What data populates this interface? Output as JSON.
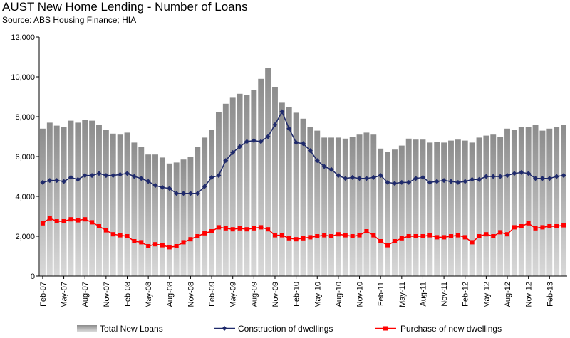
{
  "chart_data": {
    "type": "bar",
    "title": "AUST New Home Lending - Number of Loans",
    "subtitle": "Source: ABS Housing Finance; HIA",
    "xlabel": "",
    "ylabel": "",
    "ylim": [
      0,
      12000
    ],
    "yticks": [
      "0",
      "2,000",
      "4,000",
      "6,000",
      "8,000",
      "10,000",
      "12,000"
    ],
    "x_tick_labels": [
      "Feb-07",
      "May-07",
      "Aug-07",
      "Nov-07",
      "Feb-08",
      "May-08",
      "Aug-08",
      "Nov-08",
      "Feb-09",
      "May-09",
      "Aug-09",
      "Nov-09",
      "Feb-10",
      "May-10",
      "Aug-10",
      "Nov-10",
      "Feb-11",
      "May-11",
      "Aug-11",
      "Nov-11",
      "Feb-12",
      "May-12",
      "Aug-12",
      "Nov-12",
      "Feb-13"
    ],
    "grid": false,
    "legend_position": "bottom",
    "colors": {
      "bars": "#a9a9a9",
      "construction": "#1f2a6b",
      "purchase": "#ff0000"
    },
    "series": [
      {
        "name": "Total New Loans",
        "type": "bar",
        "values": [
          7400,
          7700,
          7550,
          7500,
          7800,
          7700,
          7850,
          7800,
          7600,
          7350,
          7150,
          7100,
          7200,
          6700,
          6500,
          6100,
          6100,
          5950,
          5650,
          5700,
          5850,
          6000,
          6500,
          6950,
          7350,
          8250,
          8650,
          8950,
          9150,
          9100,
          9350,
          9900,
          10450,
          9500,
          8700,
          8500,
          8200,
          7900,
          7500,
          7300,
          6950,
          6950,
          6950,
          6900,
          7000,
          7100,
          7200,
          7100,
          6400,
          6250,
          6350,
          6550,
          6900,
          6850,
          6850,
          6700,
          6750,
          6700,
          6800,
          6850,
          6800,
          6700,
          6950,
          7050,
          7100,
          7000,
          7400,
          7350,
          7500,
          7500,
          7600,
          7300,
          7400,
          7500,
          7600
        ]
      },
      {
        "name": "Construction of dwellings",
        "type": "line",
        "values": [
          4700,
          4800,
          4800,
          4750,
          4950,
          4850,
          5050,
          5050,
          5150,
          5050,
          5050,
          5100,
          5150,
          5000,
          4900,
          4750,
          4550,
          4450,
          4400,
          4150,
          4150,
          4150,
          4150,
          4500,
          4950,
          5050,
          5800,
          6200,
          6500,
          6750,
          6800,
          6750,
          7000,
          7600,
          8250,
          7400,
          6700,
          6650,
          6300,
          5800,
          5500,
          5350,
          5050,
          4900,
          4950,
          4900,
          4900,
          4950,
          5050,
          4700,
          4650,
          4700,
          4700,
          4900,
          4950,
          4700,
          4750,
          4800,
          4750,
          4700,
          4750,
          4850,
          4850,
          5000,
          5000,
          5000,
          5050,
          5150,
          5200,
          5150,
          4900,
          4900,
          4900,
          5000,
          5050
        ]
      },
      {
        "name": "Purchase of new dwellings",
        "type": "line",
        "values": [
          2650,
          2900,
          2750,
          2750,
          2850,
          2800,
          2850,
          2700,
          2500,
          2300,
          2100,
          2050,
          2000,
          1750,
          1700,
          1500,
          1600,
          1550,
          1450,
          1500,
          1700,
          1850,
          2000,
          2150,
          2250,
          2450,
          2400,
          2350,
          2400,
          2350,
          2400,
          2450,
          2350,
          2050,
          2050,
          1900,
          1850,
          1900,
          1950,
          2000,
          2050,
          2000,
          2100,
          2050,
          2000,
          2050,
          2250,
          2050,
          1750,
          1550,
          1750,
          1900,
          2000,
          2000,
          2000,
          2050,
          1950,
          1950,
          2000,
          2050,
          1950,
          1700,
          2000,
          2100,
          2000,
          2200,
          2100,
          2450,
          2500,
          2650,
          2400,
          2450,
          2500,
          2500,
          2550
        ]
      }
    ]
  }
}
